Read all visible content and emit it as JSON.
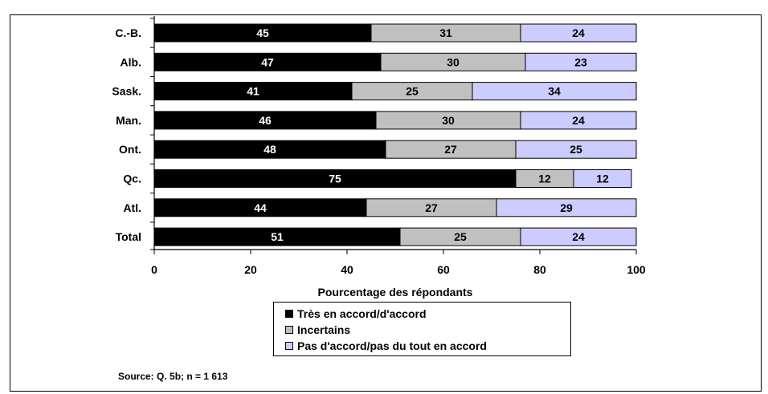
{
  "title_strip": "",
  "chart_data": {
    "type": "bar",
    "orientation": "horizontal",
    "stacked": true,
    "categories": [
      "C.-B.",
      "Alb.",
      "Sask.",
      "Man.",
      "Ont.",
      "Qc.",
      "Atl.",
      "Total"
    ],
    "series": [
      {
        "name": "Très en accord/d'accord",
        "color": "#000000",
        "label_color": "#ffffff",
        "values": [
          45,
          47,
          41,
          46,
          48,
          75,
          44,
          51
        ]
      },
      {
        "name": "Incertains",
        "color": "#c0c0c0",
        "label_color": "#000000",
        "values": [
          31,
          30,
          25,
          30,
          27,
          12,
          27,
          25
        ]
      },
      {
        "name": "Pas d'accord/pas du tout en accord",
        "color": "#ccccff",
        "label_color": "#000000",
        "values": [
          24,
          23,
          34,
          24,
          25,
          12,
          29,
          24
        ]
      }
    ],
    "xlabel": "Pourcentage des répondants",
    "ylabel": "",
    "xlim": [
      0,
      100
    ],
    "xticks": [
      0,
      20,
      40,
      60,
      80,
      100
    ],
    "grid": false,
    "legend_position": "bottom-center"
  },
  "source_note": "Source:  Q. 5b; n = 1 613"
}
